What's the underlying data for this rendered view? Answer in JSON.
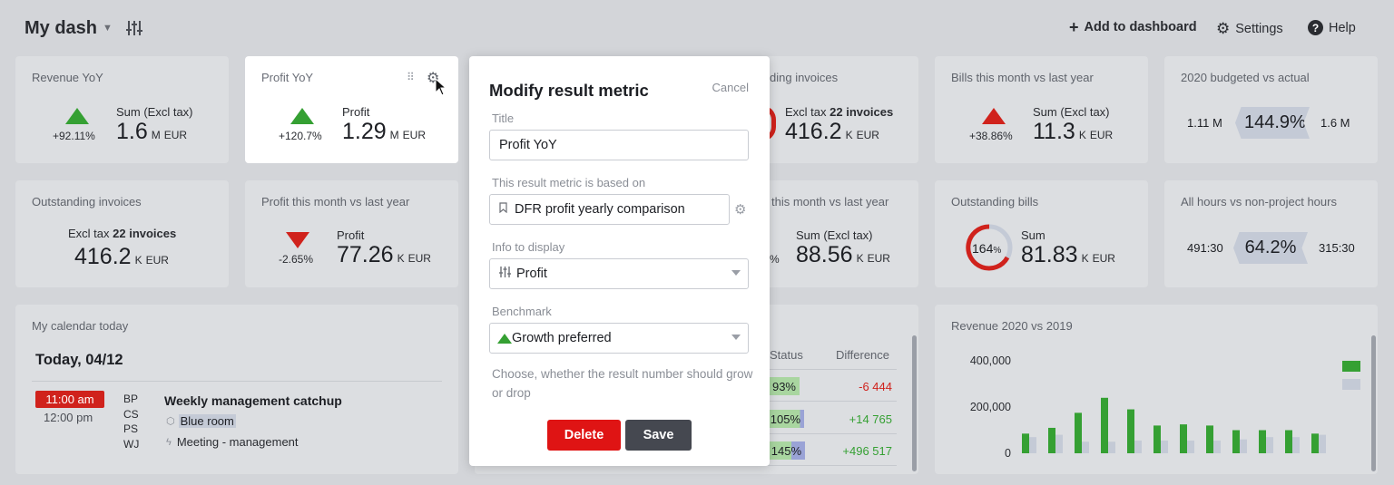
{
  "header": {
    "title": "My dash",
    "add_to_dashboard": "Add to dashboard",
    "settings": "Settings",
    "help": "Help"
  },
  "cards": {
    "revenue_yoy": {
      "title": "Revenue YoY",
      "label": "Sum (Excl tax)",
      "pct": "+92.11%",
      "value": "1.6",
      "unit_m": "M",
      "currency": "EUR"
    },
    "profit_yoy": {
      "title": "Profit YoY",
      "label": "Profit",
      "pct": "+120.7%",
      "value": "1.29",
      "unit_m": "M",
      "currency": "EUR"
    },
    "outstanding_invoices_partial": {
      "title": "ding invoices",
      "label_prefix": "Excl tax",
      "label_bold": "22 invoices",
      "value": "416.2",
      "unit_k": "K",
      "currency": "EUR"
    },
    "bills_month": {
      "title": "Bills this month vs last year",
      "label": "Sum (Excl tax)",
      "pct": "+38.86%",
      "value": "11.3",
      "unit_k": "K",
      "currency": "EUR"
    },
    "budget_2020": {
      "title": "2020 budgeted vs actual",
      "left": "1.11 M",
      "center": "144.9%",
      "right": "1.6 M"
    },
    "outstanding_invoices": {
      "title": "Outstanding invoices",
      "label_prefix": "Excl tax",
      "label_bold": "22 invoices",
      "value": "416.2",
      "unit_k": "K",
      "currency": "EUR"
    },
    "profit_month": {
      "title": "Profit this month vs last year",
      "label": "Profit",
      "pct": "-2.65%",
      "value": "77.26",
      "unit_k": "K",
      "currency": "EUR"
    },
    "revenue_month_partial": {
      "title": "this month vs last year",
      "label": "Sum (Excl tax)",
      "pct_fragment": "%",
      "value": "88.56",
      "unit_k": "K",
      "currency": "EUR"
    },
    "outstanding_bills": {
      "title": "Outstanding bills",
      "ring_pct": "164",
      "ring_pct_sign": "%",
      "label": "Sum",
      "value": "81.83",
      "unit_k": "K",
      "currency": "EUR"
    },
    "hours": {
      "title": "All hours vs non-project hours",
      "left": "491:30",
      "center": "64.2%",
      "right": "315:30"
    }
  },
  "calendar": {
    "title": "My calendar today",
    "date": "Today, 04/12",
    "event": {
      "start": "11:00 am",
      "end": "12:00 pm",
      "initials": [
        "BP",
        "CS",
        "PS",
        "WJ"
      ],
      "name": "Weekly management catchup",
      "room": "Blue room",
      "type": "Meeting - management"
    }
  },
  "table": {
    "col_status": "Status",
    "col_diff": "Difference",
    "rows": [
      {
        "status": "93%",
        "diff": "-6 444",
        "diff_color": "#d0221c",
        "fill": 0.93
      },
      {
        "status": "105%",
        "diff": "+14 765",
        "diff_color": "#35a033",
        "fill": 1.0
      },
      {
        "status": "145%",
        "diff": "+496 517",
        "diff_color": "#35a033",
        "fill": 1.0
      }
    ]
  },
  "chart_data": {
    "type": "bar",
    "title": "Revenue 2020 vs 2019",
    "ylim": [
      0,
      400000
    ],
    "y_ticks": [
      "400,000",
      "200,000",
      "0"
    ],
    "series": [
      {
        "color": "#35a033",
        "values": [
          85000,
          110000,
          175000,
          240000,
          190000,
          120000,
          125000,
          120000,
          100000,
          100000,
          100000,
          85000
        ]
      },
      {
        "color": "#c4cad6",
        "values": [
          70000,
          80000,
          50000,
          50000,
          55000,
          55000,
          55000,
          55000,
          60000,
          70000,
          70000,
          80000
        ]
      }
    ]
  },
  "modal": {
    "title": "Modify result metric",
    "cancel": "Cancel",
    "title_label": "Title",
    "title_value": "Profit YoY",
    "based_on_label": "This result metric is based on",
    "based_on_value": "DFR profit yearly comparison",
    "info_label": "Info to display",
    "info_value": "Profit",
    "benchmark_label": "Benchmark",
    "benchmark_value": "Growth preferred",
    "hint": "Choose, whether the result number should grow or drop",
    "delete": "Delete",
    "save": "Save"
  }
}
